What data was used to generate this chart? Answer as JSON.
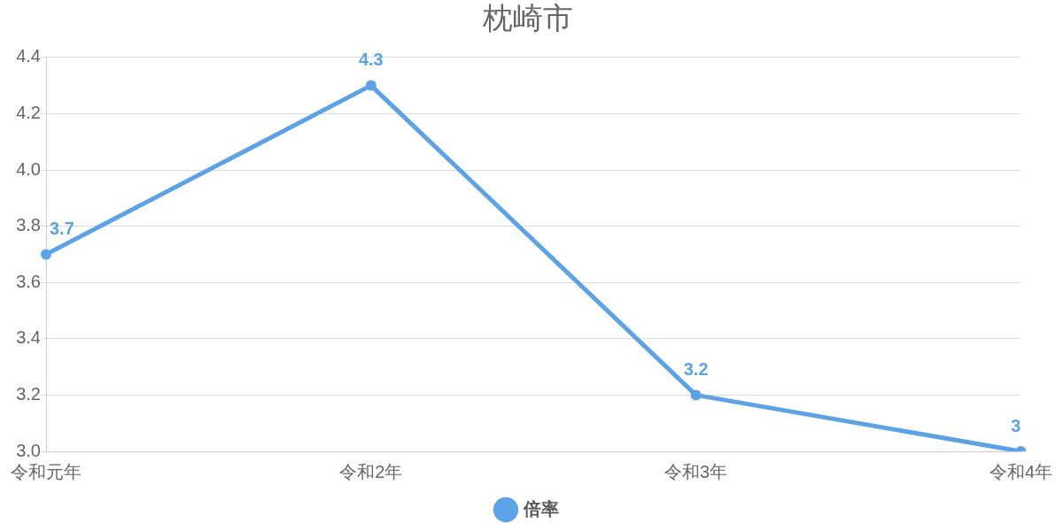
{
  "chart_data": {
    "type": "line",
    "title": "枕崎市",
    "categories": [
      "令和元年",
      "令和2年",
      "令和3年",
      "令和4年"
    ],
    "series": [
      {
        "name": "倍率",
        "color": "#5ba3e6",
        "values": [
          3.7,
          4.3,
          3.2,
          3
        ]
      }
    ],
    "ylim": [
      3.0,
      4.4
    ],
    "yticks": [
      {
        "value": 3.0,
        "label": "3.0"
      },
      {
        "value": 3.2,
        "label": "3.2"
      },
      {
        "value": 3.4,
        "label": "3.4"
      },
      {
        "value": 3.6,
        "label": "3.6"
      },
      {
        "value": 3.8,
        "label": "3.8"
      },
      {
        "value": 4.0,
        "label": "4.0"
      },
      {
        "value": 4.2,
        "label": "4.2"
      },
      {
        "value": 4.4,
        "label": "4.4"
      }
    ],
    "grid": "y",
    "legend": "bottom",
    "marker": "circle",
    "line_style": "solid",
    "data_labels": true
  }
}
